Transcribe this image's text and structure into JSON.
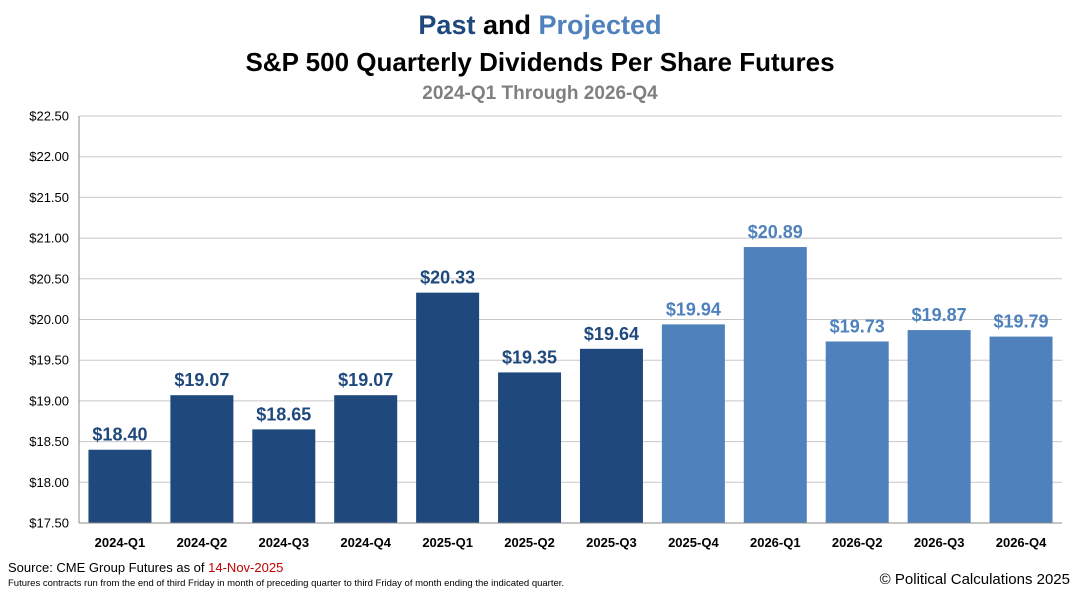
{
  "title": {
    "word_past": "Past",
    "word_and": "and",
    "word_projected": "Projected",
    "line2": "S&P 500 Quarterly Dividends Per Share Futures",
    "line3": "2024-Q1 Through 2026-Q4"
  },
  "colors": {
    "past": "#1f497d",
    "projected": "#4f81bd",
    "grid": "#c8c8c8",
    "source_date": "#c00000"
  },
  "chart_data": {
    "type": "bar",
    "title": "S&P 500 Quarterly Dividends Per Share Futures",
    "subtitle": "2024-Q1 Through 2026-Q4",
    "xlabel": "",
    "ylabel": "",
    "ylim": [
      17.5,
      22.5
    ],
    "ytick_step": 0.5,
    "ytick_labels": [
      "$17.50",
      "$18.00",
      "$18.50",
      "$19.00",
      "$19.50",
      "$20.00",
      "$20.50",
      "$21.00",
      "$21.50",
      "$22.00",
      "$22.50"
    ],
    "grid": true,
    "categories": [
      "2024-Q1",
      "2024-Q2",
      "2024-Q3",
      "2024-Q4",
      "2025-Q1",
      "2025-Q2",
      "2025-Q3",
      "2025-Q4",
      "2026-Q1",
      "2026-Q2",
      "2026-Q3",
      "2026-Q4"
    ],
    "values": [
      18.4,
      19.07,
      18.65,
      19.07,
      20.33,
      19.35,
      19.64,
      19.94,
      20.89,
      19.73,
      19.87,
      19.79
    ],
    "value_labels": [
      "$18.40",
      "$19.07",
      "$18.65",
      "$19.07",
      "$20.33",
      "$19.35",
      "$19.64",
      "$19.94",
      "$20.89",
      "$19.73",
      "$19.87",
      "$19.79"
    ],
    "status": [
      "past",
      "past",
      "past",
      "past",
      "past",
      "past",
      "past",
      "projected",
      "projected",
      "projected",
      "projected",
      "projected"
    ]
  },
  "footer": {
    "source_prefix": "Source:  CME Group Futures as of ",
    "source_date": "14-Nov-2025",
    "footnote": "Futures contracts run from the end of third Friday in month of preceding quarter to third Friday of month ending the indicated quarter.",
    "copyright": "© Political Calculations 2025"
  }
}
